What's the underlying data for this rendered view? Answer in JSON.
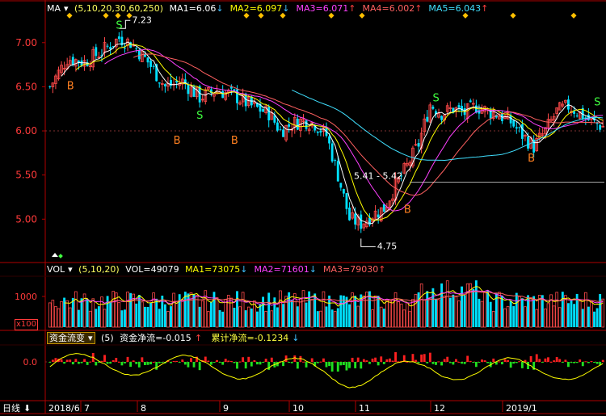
{
  "main": {
    "indicator": "MA",
    "params": "(5,10,20,30,60,250)",
    "ma_values": [
      {
        "label": "MA1=6.06",
        "arrow": "↓",
        "color": "#ffffff"
      },
      {
        "label": "MA2=6.097",
        "arrow": "↓",
        "color": "#ffff00"
      },
      {
        "label": "MA3=6.071",
        "arrow": "↑",
        "color": "#ff40ff"
      },
      {
        "label": "MA4=6.002",
        "arrow": "↑",
        "color": "#ff6060"
      },
      {
        "label": "MA5=6.043",
        "arrow": "↑",
        "color": "#40e0ff"
      }
    ],
    "high_label": "7.23",
    "low_label": "4.75",
    "range_label": "5.41 - 5.42",
    "y_ticks": [
      "7.00",
      "6.50",
      "6.00",
      "5.50",
      "5.00"
    ],
    "signals": [
      "S",
      "B"
    ]
  },
  "volume": {
    "indicator": "VOL",
    "params": "(5,10,20)",
    "vol_label": "VOL=49079",
    "ma_values": [
      {
        "label": "MA1=73075",
        "arrow": "↓",
        "color": "#ffff00"
      },
      {
        "label": "MA2=71601",
        "arrow": "↓",
        "color": "#ff40ff"
      },
      {
        "label": "MA3=79030",
        "arrow": "↑",
        "color": "#ff6060"
      }
    ],
    "y_tick": "1000",
    "unit": "x100"
  },
  "flow": {
    "indicator": "资金流变",
    "params": "(5)",
    "net_label": "资金净流=-0.015",
    "net_arrow": "↑",
    "cum_label": "累计净流=-0.1234",
    "cum_arrow": "↓",
    "y_tick": "0.0"
  },
  "x_axis": {
    "period": "日线",
    "labels": [
      "2018/6",
      "7",
      "8",
      "9",
      "10",
      "11",
      "12",
      "2019/1"
    ]
  },
  "colors": {
    "up": "#ff4a4a",
    "down": "#00e0ff",
    "frame": "#b00000",
    "axis_text": "#ff3a3a",
    "flow_pos": "#ff2020",
    "flow_neg": "#20e020"
  },
  "chart_data": {
    "type": "candlestick",
    "price_anchors": [
      [
        0,
        6.5
      ],
      [
        6,
        6.82
      ],
      [
        12,
        6.78
      ],
      [
        18,
        6.9
      ],
      [
        24,
        7.05
      ],
      [
        28,
        7.0
      ],
      [
        34,
        6.78
      ],
      [
        40,
        6.5
      ],
      [
        46,
        6.56
      ],
      [
        52,
        6.38
      ],
      [
        58,
        6.46
      ],
      [
        64,
        6.4
      ],
      [
        70,
        6.28
      ],
      [
        76,
        6.2
      ],
      [
        80,
        6.0
      ],
      [
        84,
        6.08
      ],
      [
        88,
        6.12
      ],
      [
        92,
        6.08
      ],
      [
        96,
        5.95
      ],
      [
        100,
        5.5
      ],
      [
        104,
        5.0
      ],
      [
        108,
        4.95
      ],
      [
        112,
        5.05
      ],
      [
        116,
        5.12
      ],
      [
        120,
        5.38
      ],
      [
        124,
        5.6
      ],
      [
        128,
        5.85
      ],
      [
        132,
        6.3
      ],
      [
        136,
        6.2
      ],
      [
        140,
        6.25
      ],
      [
        144,
        6.2
      ],
      [
        148,
        6.28
      ],
      [
        152,
        6.22
      ],
      [
        156,
        6.18
      ],
      [
        160,
        6.1
      ],
      [
        164,
        5.95
      ],
      [
        168,
        5.82
      ],
      [
        172,
        6.0
      ],
      [
        176,
        6.22
      ],
      [
        180,
        6.28
      ],
      [
        184,
        6.2
      ],
      [
        188,
        6.1
      ],
      [
        192,
        6.05
      ]
    ],
    "y_range": [
      4.6,
      7.3
    ],
    "bars": 193
  }
}
